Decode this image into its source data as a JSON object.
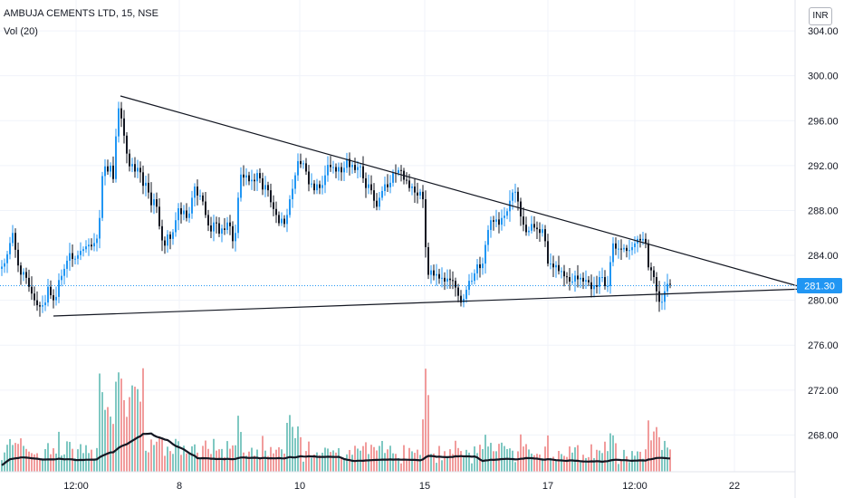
{
  "legend": {
    "title": "AMBUJA CEMENTS LTD, 15, NSE",
    "volume": "Vol (20)",
    "currency": "INR"
  },
  "chart_data": {
    "type": "candlestick",
    "ylim": [
      264,
      306
    ],
    "y_ticks": [
      "268.00",
      "272.00",
      "276.00",
      "280.00",
      "284.00",
      "288.00",
      "292.00",
      "296.00",
      "300.00",
      "304.00"
    ],
    "x_ticks": [
      "12:00",
      "8",
      "10",
      "15",
      "17",
      "12:00",
      "22"
    ],
    "last_price": "281.30",
    "last_price_value": 281.3,
    "colors": {
      "up": "#2196f3",
      "down": "#131722",
      "price_line": "#2196f3",
      "vol_up": "#7fc8c2",
      "vol_down": "#f19c9c",
      "grid": "#f0f3fa"
    },
    "price_path": [
      [
        0,
        282.8
      ],
      [
        6,
        283.4
      ],
      [
        10,
        284.8
      ],
      [
        14,
        286
      ],
      [
        18,
        284
      ],
      [
        22,
        282.2
      ],
      [
        27,
        282.6
      ],
      [
        31,
        281.4
      ],
      [
        35,
        280.6
      ],
      [
        40,
        279.6
      ],
      [
        45,
        279.4
      ],
      [
        50,
        279.8
      ],
      [
        53,
        281.2
      ],
      [
        57,
        280.2
      ],
      [
        61,
        279.8
      ],
      [
        65,
        281.8
      ],
      [
        69,
        282.3
      ],
      [
        73,
        283.3
      ],
      [
        77,
        284.2
      ],
      [
        81,
        283.5
      ],
      [
        85,
        283.9
      ],
      [
        89,
        284.4
      ],
      [
        93,
        284.6
      ],
      [
        97,
        285
      ],
      [
        101,
        284.8
      ],
      [
        105,
        285.2
      ],
      [
        109,
        285.8
      ],
      [
        112,
        290.4
      ],
      [
        115,
        292.4
      ],
      [
        118,
        291
      ],
      [
        121,
        292.4
      ],
      [
        125,
        290.8
      ],
      [
        128,
        294.6
      ],
      [
        130,
        297.6
      ],
      [
        132,
        296.6
      ],
      [
        135,
        296
      ],
      [
        138,
        294
      ],
      [
        141,
        292.6
      ],
      [
        144,
        291.6
      ],
      [
        147,
        292.4
      ],
      [
        150,
        291
      ],
      [
        153,
        292.2
      ],
      [
        156,
        291
      ],
      [
        159,
        289.8
      ],
      [
        162,
        290.8
      ],
      [
        165,
        289
      ],
      [
        168,
        288.2
      ],
      [
        171,
        289.4
      ],
      [
        174,
        287.8
      ],
      [
        177,
        286
      ],
      [
        180,
        285
      ],
      [
        183,
        284.8
      ],
      [
        186,
        286.4
      ],
      [
        189,
        285
      ],
      [
        192,
        286.6
      ],
      [
        195,
        287.4
      ],
      [
        198,
        288.6
      ],
      [
        201,
        287.2
      ],
      [
        204,
        288.4
      ],
      [
        207,
        286.8
      ],
      [
        210,
        288.2
      ],
      [
        213,
        289.6
      ],
      [
        216,
        290.4
      ],
      [
        219,
        288.8
      ],
      [
        222,
        289.6
      ],
      [
        225,
        288.4
      ],
      [
        228,
        287.2
      ],
      [
        231,
        286.4
      ],
      [
        234,
        286
      ],
      [
        237,
        287.4
      ],
      [
        240,
        286.6
      ],
      [
        243,
        285.6
      ],
      [
        246,
        286.8
      ],
      [
        249,
        286
      ],
      [
        252,
        287.4
      ],
      [
        255,
        286.2
      ],
      [
        258,
        284.8
      ],
      [
        261,
        286.6
      ],
      [
        264,
        290.4
      ],
      [
        267,
        291.6
      ],
      [
        270,
        290.6
      ],
      [
        273,
        291.4
      ],
      [
        276,
        290.2
      ],
      [
        279,
        291
      ],
      [
        282,
        290.4
      ],
      [
        285,
        291.8
      ],
      [
        288,
        290.4
      ],
      [
        291,
        289.6
      ],
      [
        294,
        290.6
      ],
      [
        297,
        289.4
      ],
      [
        300,
        288.4
      ],
      [
        303,
        288
      ],
      [
        306,
        287.4
      ],
      [
        309,
        286.6
      ],
      [
        312,
        287.6
      ],
      [
        315,
        286.4
      ],
      [
        318,
        288.2
      ],
      [
        321,
        289.4
      ],
      [
        324,
        290.2
      ],
      [
        327,
        291.6
      ],
      [
        330,
        292.8
      ],
      [
        333,
        291.8
      ],
      [
        336,
        292.4
      ],
      [
        339,
        291
      ],
      [
        342,
        290
      ],
      [
        345,
        290.6
      ],
      [
        348,
        289.4
      ],
      [
        351,
        290.8
      ],
      [
        354,
        289.6
      ],
      [
        357,
        290.6
      ],
      [
        360,
        291.4
      ],
      [
        363,
        292.4
      ],
      [
        366,
        291.6
      ],
      [
        369,
        292
      ],
      [
        372,
        291.2
      ],
      [
        375,
        292.2
      ],
      [
        378,
        291
      ],
      [
        381,
        292.2
      ],
      [
        384,
        292.8
      ],
      [
        387,
        291.4
      ],
      [
        390,
        292.4
      ],
      [
        393,
        291.2
      ],
      [
        396,
        292.2
      ],
      [
        399,
        291.8
      ],
      [
        402,
        290.4
      ],
      [
        405,
        289.8
      ],
      [
        408,
        290.6
      ],
      [
        411,
        289.4
      ],
      [
        414,
        288.6
      ],
      [
        417,
        288.2
      ],
      [
        420,
        289.6
      ],
      [
        423,
        289.8
      ],
      [
        426,
        290.6
      ],
      [
        429,
        289.8
      ],
      [
        432,
        290.8
      ],
      [
        435,
        291.6
      ],
      [
        438,
        291.2
      ],
      [
        441,
        291.8
      ],
      [
        444,
        291.4
      ],
      [
        447,
        290.4
      ],
      [
        450,
        290.8
      ],
      [
        453,
        289.6
      ],
      [
        456,
        290.4
      ],
      [
        459,
        289.2
      ],
      [
        462,
        289.4
      ],
      [
        465,
        289.8
      ],
      [
        468,
        288.6
      ],
      [
        471,
        282.8
      ],
      [
        474,
        282
      ],
      [
        477,
        283
      ],
      [
        480,
        281.8
      ],
      [
        483,
        282.6
      ],
      [
        486,
        281.6
      ],
      [
        489,
        282.2
      ],
      [
        492,
        281.4
      ],
      [
        495,
        282.2
      ],
      [
        498,
        281.6
      ],
      [
        501,
        281.8
      ],
      [
        504,
        280.8
      ],
      [
        507,
        280.2
      ],
      [
        510,
        279.6
      ],
      [
        513,
        280.4
      ],
      [
        516,
        281.2
      ],
      [
        519,
        282
      ],
      [
        522,
        281.6
      ],
      [
        525,
        282.8
      ],
      [
        528,
        283.4
      ],
      [
        531,
        282.6
      ],
      [
        534,
        283.6
      ],
      [
        537,
        285.6
      ],
      [
        540,
        286.6
      ],
      [
        543,
        287.4
      ],
      [
        546,
        286.8
      ],
      [
        549,
        287.4
      ],
      [
        552,
        286.4
      ],
      [
        555,
        287.8
      ],
      [
        558,
        287.4
      ],
      [
        561,
        288.2
      ],
      [
        564,
        289.2
      ],
      [
        567,
        289.8
      ],
      [
        570,
        289.6
      ],
      [
        573,
        288.4
      ],
      [
        576,
        287
      ],
      [
        579,
        286.6
      ],
      [
        582,
        285.8
      ],
      [
        585,
        286.4
      ],
      [
        588,
        287
      ],
      [
        591,
        286.2
      ],
      [
        594,
        286.4
      ],
      [
        597,
        285.8
      ],
      [
        600,
        286.6
      ],
      [
        603,
        284.6
      ],
      [
        606,
        282.6
      ],
      [
        609,
        283.6
      ],
      [
        612,
        282.6
      ],
      [
        615,
        283.4
      ],
      [
        618,
        282.2
      ],
      [
        621,
        282.8
      ],
      [
        624,
        281.8
      ],
      [
        627,
        282.2
      ],
      [
        630,
        281.4
      ],
      [
        633,
        281.8
      ],
      [
        636,
        282.4
      ],
      [
        639,
        281.6
      ],
      [
        642,
        282.2
      ],
      [
        645,
        281.4
      ],
      [
        648,
        282
      ],
      [
        651,
        281.4
      ],
      [
        654,
        280.8
      ],
      [
        657,
        281.6
      ],
      [
        660,
        281
      ],
      [
        663,
        282.6
      ],
      [
        666,
        281.8
      ],
      [
        669,
        281
      ],
      [
        672,
        281.4
      ],
      [
        675,
        284.4
      ],
      [
        678,
        285.4
      ],
      [
        681,
        284.2
      ],
      [
        684,
        284.8
      ],
      [
        687,
        284.4
      ],
      [
        690,
        284.8
      ],
      [
        693,
        284.2
      ],
      [
        696,
        284.6
      ],
      [
        699,
        284.8
      ],
      [
        702,
        285.2
      ],
      [
        705,
        285.6
      ],
      [
        708,
        285.2
      ],
      [
        711,
        285.6
      ],
      [
        714,
        284.8
      ],
      [
        717,
        282
      ],
      [
        720,
        283
      ],
      [
        723,
        281.6
      ],
      [
        726,
        280.4
      ],
      [
        729,
        279.6
      ],
      [
        732,
        280
      ],
      [
        735,
        281.2
      ],
      [
        738,
        281.6
      ],
      [
        741,
        281.3
      ]
    ],
    "trendlines": [
      {
        "x1": 133,
        "y1": 298.2,
        "x2": 884,
        "y2": 281.2
      },
      {
        "x1": 59,
        "y1": 278.6,
        "x2": 884,
        "y2": 281.0
      }
    ]
  }
}
